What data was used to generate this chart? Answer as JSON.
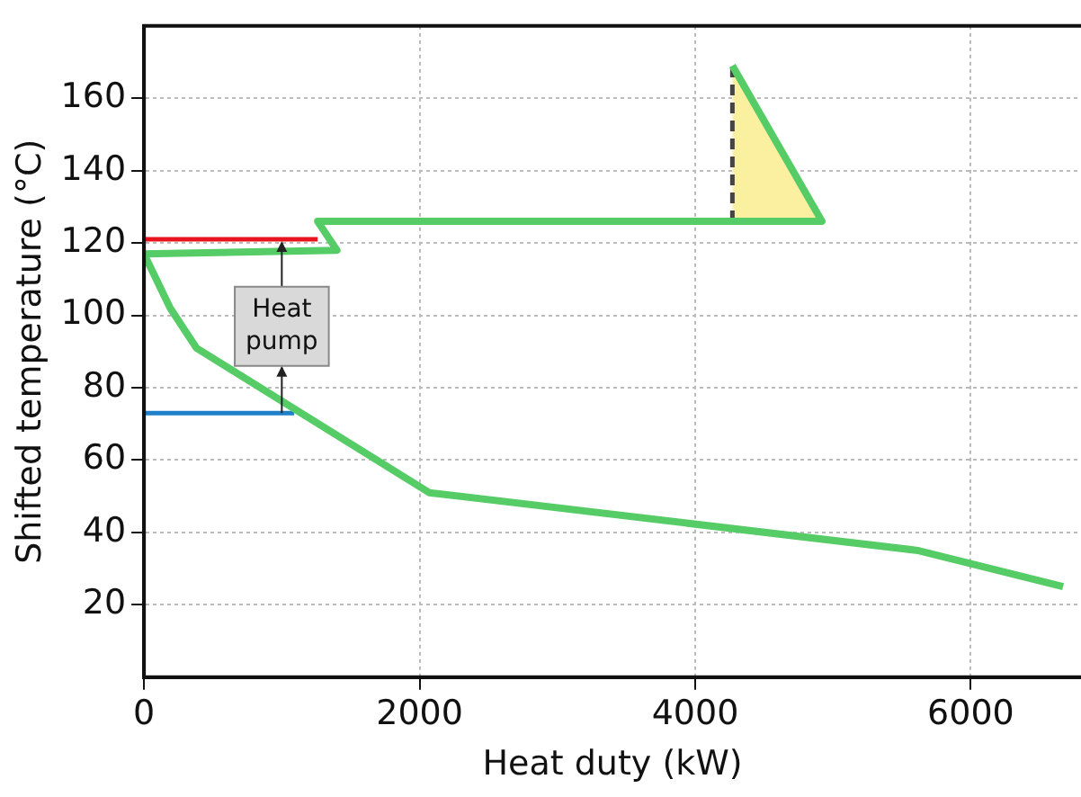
{
  "chart_data": {
    "type": "line",
    "xlabel": "Heat duty (kW)",
    "ylabel": "Shifted temperature (°C)",
    "xlim": [
      0,
      6800
    ],
    "xticks": [
      0,
      2000,
      4000,
      6000
    ],
    "ylim": [
      0,
      180
    ],
    "yticks": [
      20,
      40,
      60,
      80,
      100,
      120,
      140,
      160
    ],
    "grid": true,
    "legend": false,
    "series": [
      {
        "type": "area",
        "color": "#fbf0a0",
        "x": [
          4270,
          4920,
          4270
        ],
        "values": [
          169,
          126,
          126
        ]
      },
      {
        "color": "#e8141c",
        "x": [
          0,
          1260
        ],
        "values": [
          121,
          121
        ]
      },
      {
        "color": "#1f7fc8",
        "x": [
          0,
          1090
        ],
        "values": [
          73,
          73
        ]
      },
      {
        "color": "#444444",
        "line_style": "dashed",
        "x": [
          4270,
          4270
        ],
        "values": [
          126,
          169
        ]
      },
      {
        "color": "#55cc66",
        "x": [
          4270,
          4920,
          1260,
          1400,
          0,
          190,
          380,
          2070,
          5620,
          6670
        ],
        "values": [
          169,
          126,
          126,
          118,
          117,
          102,
          91,
          51,
          35,
          25
        ]
      }
    ],
    "annotations": [
      {
        "text": "Heat pump",
        "x": 1000,
        "y": 121
      }
    ]
  }
}
